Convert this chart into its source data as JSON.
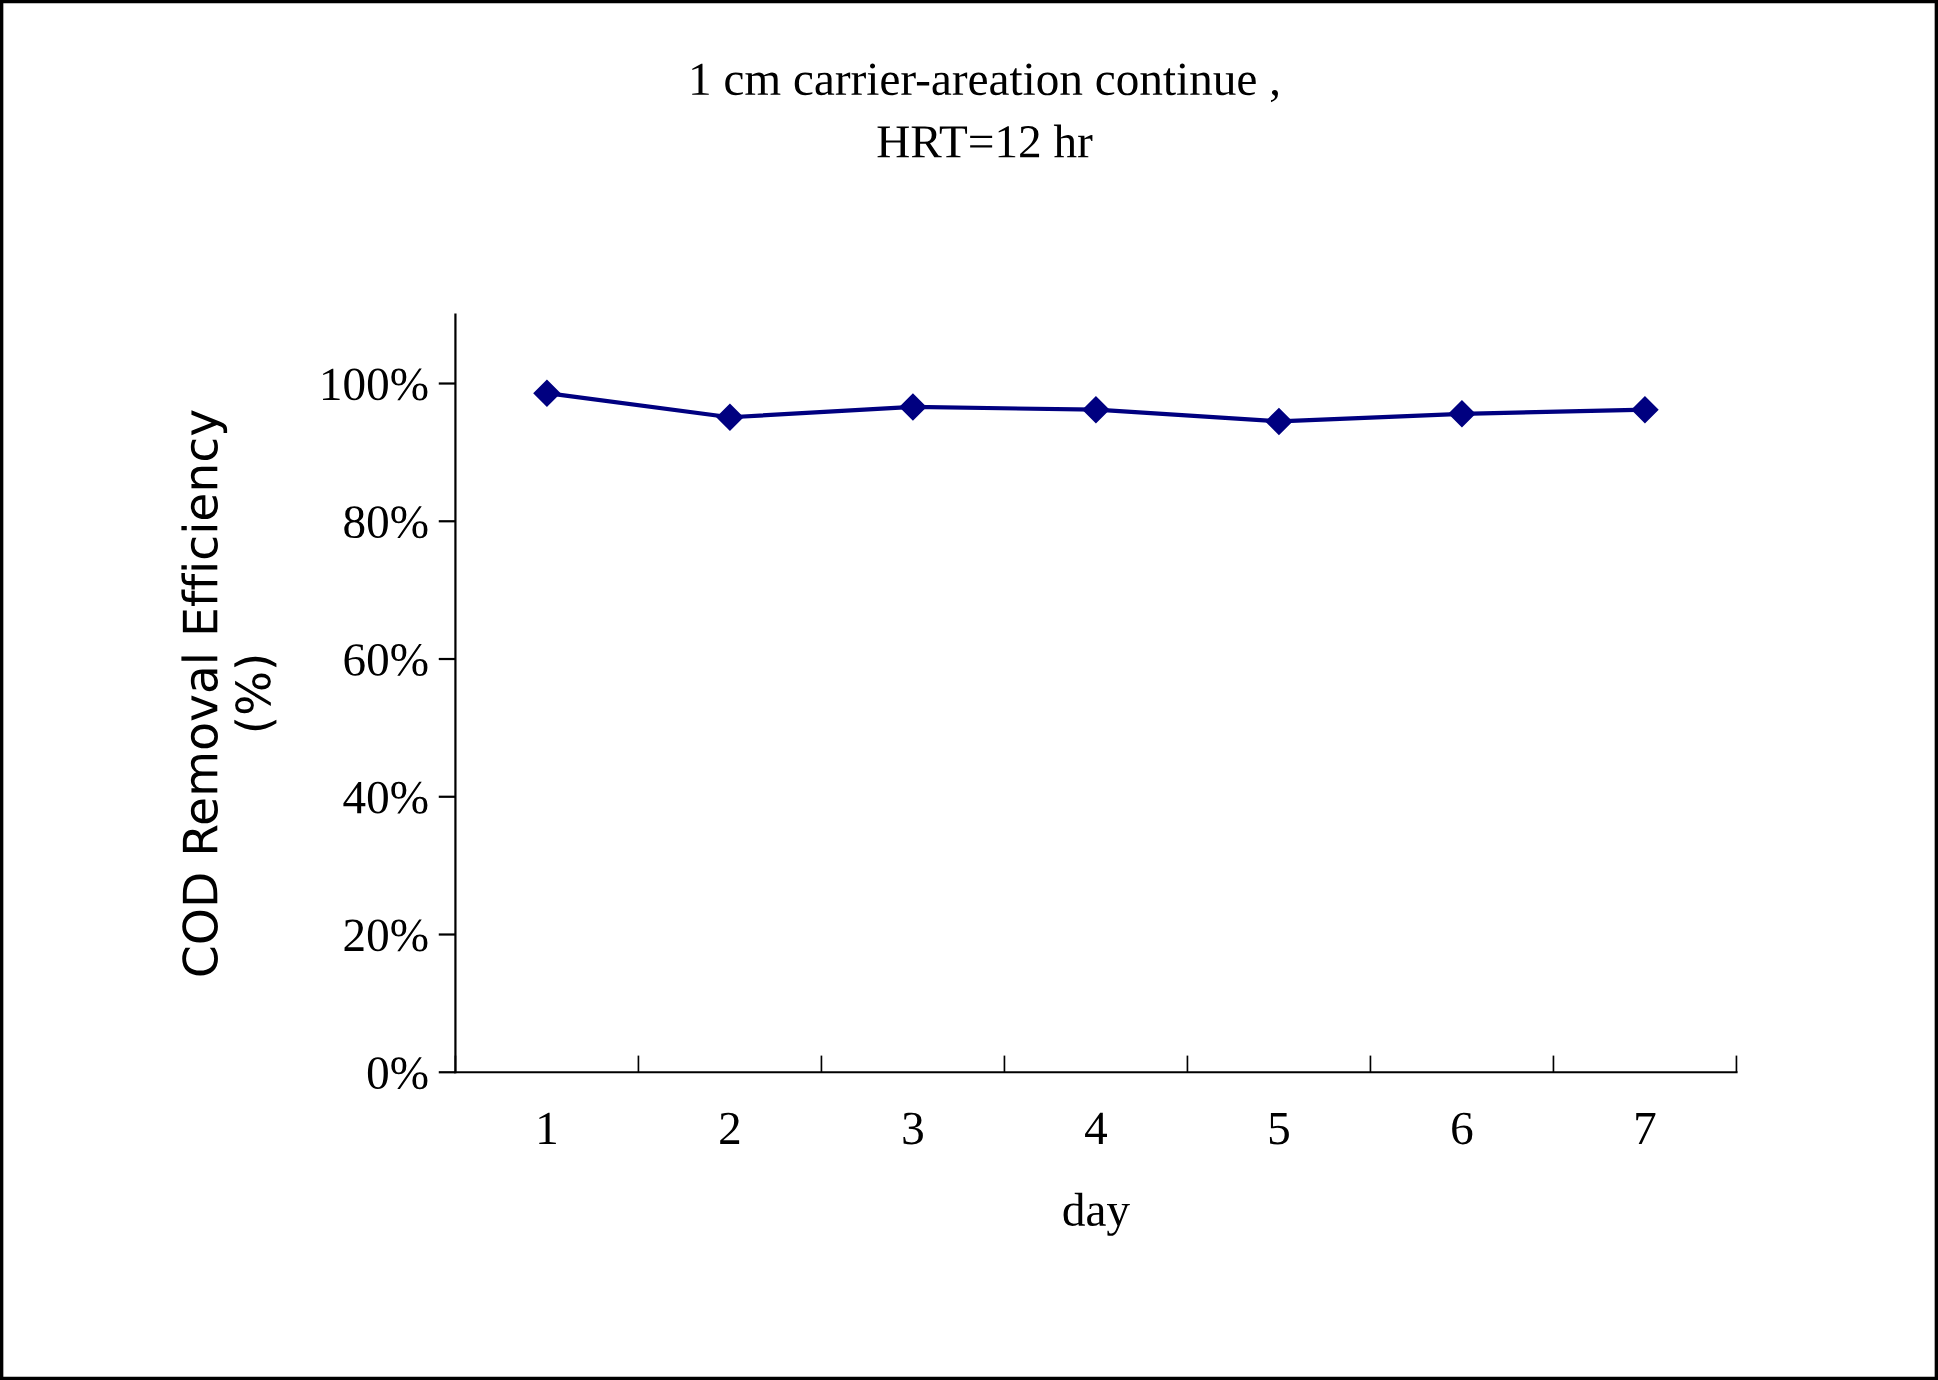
{
  "chart_data": {
    "type": "line",
    "title": "1 cm carrier-areation continue ,\nHRT=12 hr",
    "xlabel": "day",
    "ylabel": "COD Removal Efficiency\n(%)",
    "categories": [
      "1",
      "2",
      "3",
      "4",
      "5",
      "6",
      "7"
    ],
    "series": [
      {
        "color": "#000080",
        "values": [
          98.6,
          95.1,
          96.6,
          96.2,
          94.5,
          95.6,
          96.2
        ]
      }
    ],
    "ylim": [
      0,
      110
    ],
    "yticks": [
      {
        "value": 0,
        "label": "0%"
      },
      {
        "value": 20,
        "label": "20%"
      },
      {
        "value": 40,
        "label": "40%"
      },
      {
        "value": 60,
        "label": "60%"
      },
      {
        "value": 80,
        "label": "80%"
      },
      {
        "value": 100,
        "label": "100%"
      }
    ],
    "grid": false,
    "legend": false,
    "marker": "diamond",
    "line_style": "solid"
  }
}
